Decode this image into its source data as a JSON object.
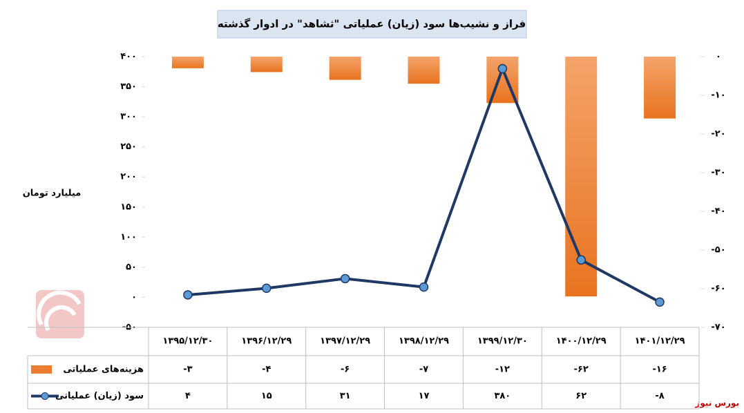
{
  "chart_data": {
    "type": "combo",
    "title": "فراز و نشیب‌ها سود (زیان) عملیاتی \"ثشاهد\" در ادوار گذشته",
    "y_label": "میلیارد تومان",
    "source": "بورس نیوز",
    "categories": [
      "۱۳۹۵/۱۲/۳۰",
      "۱۳۹۶/۱۲/۲۹",
      "۱۳۹۷/۱۲/۲۹",
      "۱۳۹۸/۱۲/۲۹",
      "۱۳۹۹/۱۲/۳۰",
      "۱۴۰۰/۱۲/۲۹",
      "۱۴۰۱/۱۲/۲۹"
    ],
    "series": [
      {
        "name": "هزینه‌های عملیاتی",
        "type": "bar",
        "axis": "y2",
        "color": "#ed7d31",
        "values": [
          -3,
          -4,
          -6,
          -7,
          -12,
          -62,
          -16
        ],
        "value_labels": [
          "-۳",
          "-۴",
          "-۶",
          "-۷",
          "-۱۲",
          "-۶۲",
          "-۱۶"
        ]
      },
      {
        "name": "سود (زیان) عملیاتی",
        "type": "line",
        "color": "#203864",
        "marker_color": "#5b9bd5",
        "values": [
          4,
          15,
          31,
          17,
          380,
          62,
          -8
        ],
        "value_labels": [
          "۴",
          "۱۵",
          "۳۱",
          "۱۷",
          "۳۸۰",
          "۶۲",
          "-۸"
        ]
      }
    ],
    "ylim": [
      -50,
      400
    ],
    "yticks": [
      {
        "value": 400,
        "label": "۴۰۰"
      },
      {
        "value": 350,
        "label": "۳۵۰"
      },
      {
        "value": 300,
        "label": "۳۰۰"
      },
      {
        "value": 250,
        "label": "۲۵۰"
      },
      {
        "value": 200,
        "label": "۲۰۰"
      },
      {
        "value": 150,
        "label": "۱۵۰"
      },
      {
        "value": 100,
        "label": "۱۰۰"
      },
      {
        "value": 50,
        "label": "۵۰"
      },
      {
        "value": 0,
        "label": "۰"
      },
      {
        "value": -50,
        "label": "-۵۰"
      }
    ],
    "y2lim": [
      -70,
      0
    ],
    "y2ticks": [
      {
        "value": 0,
        "label": "۰"
      },
      {
        "value": -10,
        "label": "-۱۰"
      },
      {
        "value": -20,
        "label": "-۲۰"
      },
      {
        "value": -30,
        "label": "-۳۰"
      },
      {
        "value": -40,
        "label": "-۴۰"
      },
      {
        "value": -50,
        "label": "-۵۰"
      },
      {
        "value": -60,
        "label": "-۶۰"
      },
      {
        "value": -70,
        "label": "-۷۰"
      }
    ]
  }
}
